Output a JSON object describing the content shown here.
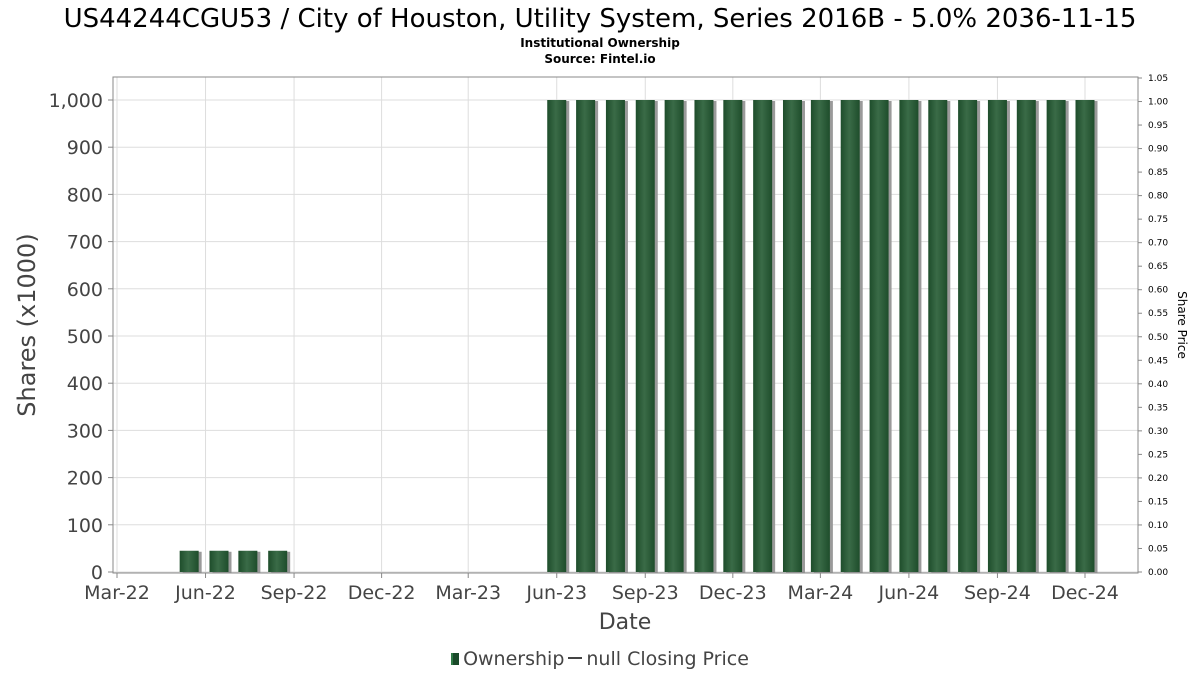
{
  "title": "US44244CGU53 / City of Houston, Utility System, Series 2016B - 5.0% 2036-11-15",
  "subtitle": "Institutional Ownership",
  "source": "Source: Fintel.io",
  "legend": {
    "ownership_label": "Ownership",
    "price_label": "null Closing Price"
  },
  "colors": {
    "bar": "#1e4d2b",
    "bar_highlight": "#3a6b47",
    "bar_shadow": "#9a9a9a",
    "grid": "#dddddd",
    "frame": "#888888"
  },
  "chart_data": {
    "type": "bar",
    "xlabel": "Date",
    "ylabel": "Shares (x1000)",
    "y2label": "Share Price",
    "x_ticks": [
      "Mar-22",
      "Jun-22",
      "Sep-22",
      "Dec-22",
      "Mar-23",
      "Jun-23",
      "Sep-23",
      "Dec-23",
      "Mar-24",
      "Jun-24",
      "Sep-24",
      "Dec-24"
    ],
    "ylim": [
      0,
      1050
    ],
    "y_ticks": [
      0,
      100,
      200,
      300,
      400,
      500,
      600,
      700,
      800,
      900,
      1000
    ],
    "y_tick_labels": [
      "0",
      "100",
      "200",
      "300",
      "400",
      "500",
      "600",
      "700",
      "800",
      "900",
      "1,000"
    ],
    "y2lim": [
      0,
      1.05
    ],
    "y2_tick_labels": [
      "0.00",
      "0.05",
      "0.10",
      "0.15",
      "0.20",
      "0.25",
      "0.30",
      "0.35",
      "0.40",
      "0.45",
      "0.50",
      "0.55",
      "0.60",
      "0.65",
      "0.70",
      "0.75",
      "0.80",
      "0.85",
      "0.90",
      "0.95",
      "1.00",
      "1.05"
    ],
    "grid": true,
    "series": [
      {
        "name": "Ownership",
        "points": [
          {
            "date": "2022-05-15",
            "value": 45
          },
          {
            "date": "2022-06-15",
            "value": 45
          },
          {
            "date": "2022-07-15",
            "value": 45
          },
          {
            "date": "2022-08-15",
            "value": 45
          },
          {
            "date": "2023-06-01",
            "value": 1000
          },
          {
            "date": "2023-07-01",
            "value": 1000
          },
          {
            "date": "2023-08-01",
            "value": 1000
          },
          {
            "date": "2023-09-01",
            "value": 1000
          },
          {
            "date": "2023-10-01",
            "value": 1000
          },
          {
            "date": "2023-11-01",
            "value": 1000
          },
          {
            "date": "2023-12-01",
            "value": 1000
          },
          {
            "date": "2024-01-01",
            "value": 1000
          },
          {
            "date": "2024-02-01",
            "value": 1000
          },
          {
            "date": "2024-03-01",
            "value": 1000
          },
          {
            "date": "2024-04-01",
            "value": 1000
          },
          {
            "date": "2024-05-01",
            "value": 1000
          },
          {
            "date": "2024-06-01",
            "value": 1000
          },
          {
            "date": "2024-07-01",
            "value": 1000
          },
          {
            "date": "2024-08-01",
            "value": 1000
          },
          {
            "date": "2024-09-01",
            "value": 1000
          },
          {
            "date": "2024-10-01",
            "value": 1000
          },
          {
            "date": "2024-11-01",
            "value": 1000
          },
          {
            "date": "2024-12-01",
            "value": 1000
          }
        ]
      }
    ]
  }
}
